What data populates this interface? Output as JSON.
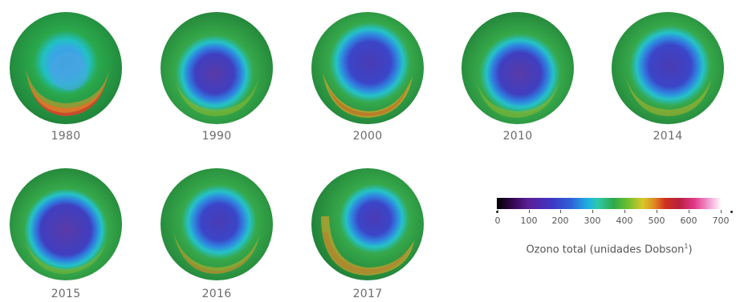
{
  "globes": [
    {
      "year": "1980"
    },
    {
      "year": "1990"
    },
    {
      "year": "2000"
    },
    {
      "year": "2010"
    },
    {
      "year": "2014"
    },
    {
      "year": "2015"
    },
    {
      "year": "2016"
    },
    {
      "year": "2017"
    }
  ],
  "colorbar": {
    "ticks": [
      "0",
      "100",
      "200",
      "300",
      "400",
      "500",
      "600",
      "700"
    ],
    "title_text": "Ozono total (unidades Dobson",
    "title_sup": "1",
    "title_close": ")"
  }
}
